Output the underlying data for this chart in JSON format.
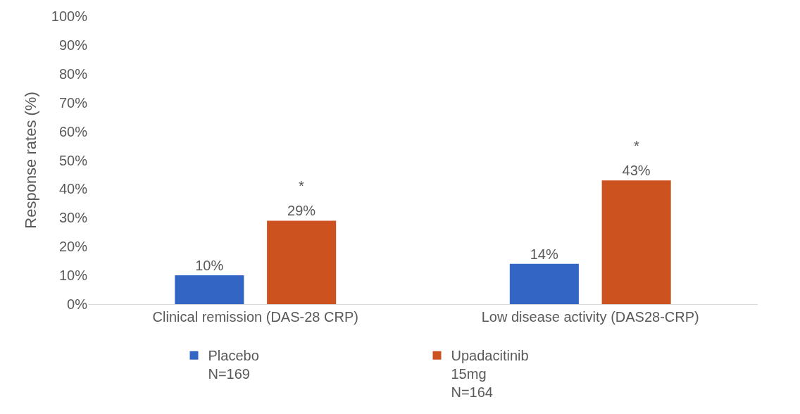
{
  "chart_data": {
    "type": "bar",
    "ylabel": "Response rates (%)",
    "categories": [
      "Clinical remission (DAS-28 CRP)",
      "Low disease activity (DAS28-CRP)"
    ],
    "series": [
      {
        "name": "Placebo\nN=169",
        "color": "#3366c4",
        "values": [
          10,
          14
        ],
        "value_labels": [
          "10%",
          "14%"
        ]
      },
      {
        "name": "Upadacitinib\n15mg\nN=164",
        "color": "#cc521f",
        "values": [
          29,
          43
        ],
        "value_labels": [
          "29%",
          "43%"
        ]
      }
    ],
    "ylim": [
      0,
      100
    ],
    "yticks": [
      {
        "value": 0,
        "label": "0%"
      },
      {
        "value": 10,
        "label": "10%"
      },
      {
        "value": 20,
        "label": "20%"
      },
      {
        "value": 30,
        "label": "30%"
      },
      {
        "value": 40,
        "label": "40%"
      },
      {
        "value": 50,
        "label": "50%"
      },
      {
        "value": 60,
        "label": "60%"
      },
      {
        "value": 70,
        "label": "70%"
      },
      {
        "value": 80,
        "label": "80%"
      },
      {
        "value": 90,
        "label": "90%"
      },
      {
        "value": 100,
        "label": "100%"
      }
    ],
    "annotations": [
      "*",
      "*"
    ],
    "legend": "bottom"
  }
}
